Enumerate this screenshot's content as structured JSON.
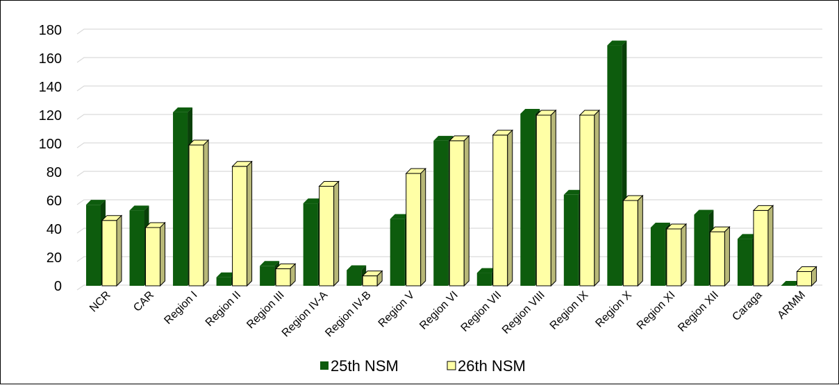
{
  "chart_data": {
    "type": "bar",
    "categories": [
      "NCR",
      "CAR",
      "Region I",
      "Region II",
      "Region III",
      "Region IV-A",
      "Region IV-B",
      "Region V",
      "Region VI",
      "Region VII",
      "Region VIII",
      "Region IX",
      "Region X",
      "Region XI",
      "Region XII",
      "Caraga",
      "ARMM"
    ],
    "series": [
      {
        "name": "25th NSM",
        "values": [
          57,
          53,
          122,
          6,
          14,
          58,
          11,
          47,
          102,
          9,
          121,
          64,
          169,
          41,
          50,
          33,
          0
        ],
        "color": "#0d5c0d"
      },
      {
        "name": "26th NSM",
        "values": [
          46,
          41,
          99,
          84,
          12,
          70,
          7,
          79,
          102,
          106,
          120,
          120,
          60,
          40,
          38,
          53,
          10
        ],
        "color": "#ffffa6"
      }
    ],
    "yticks": [
      "0",
      "20",
      "40",
      "60",
      "80",
      "100",
      "120",
      "140",
      "160",
      "180"
    ],
    "ylim": [
      0,
      180
    ],
    "grid": true,
    "legend_position": "bottom",
    "title": "",
    "xlabel": "",
    "ylabel": ""
  }
}
